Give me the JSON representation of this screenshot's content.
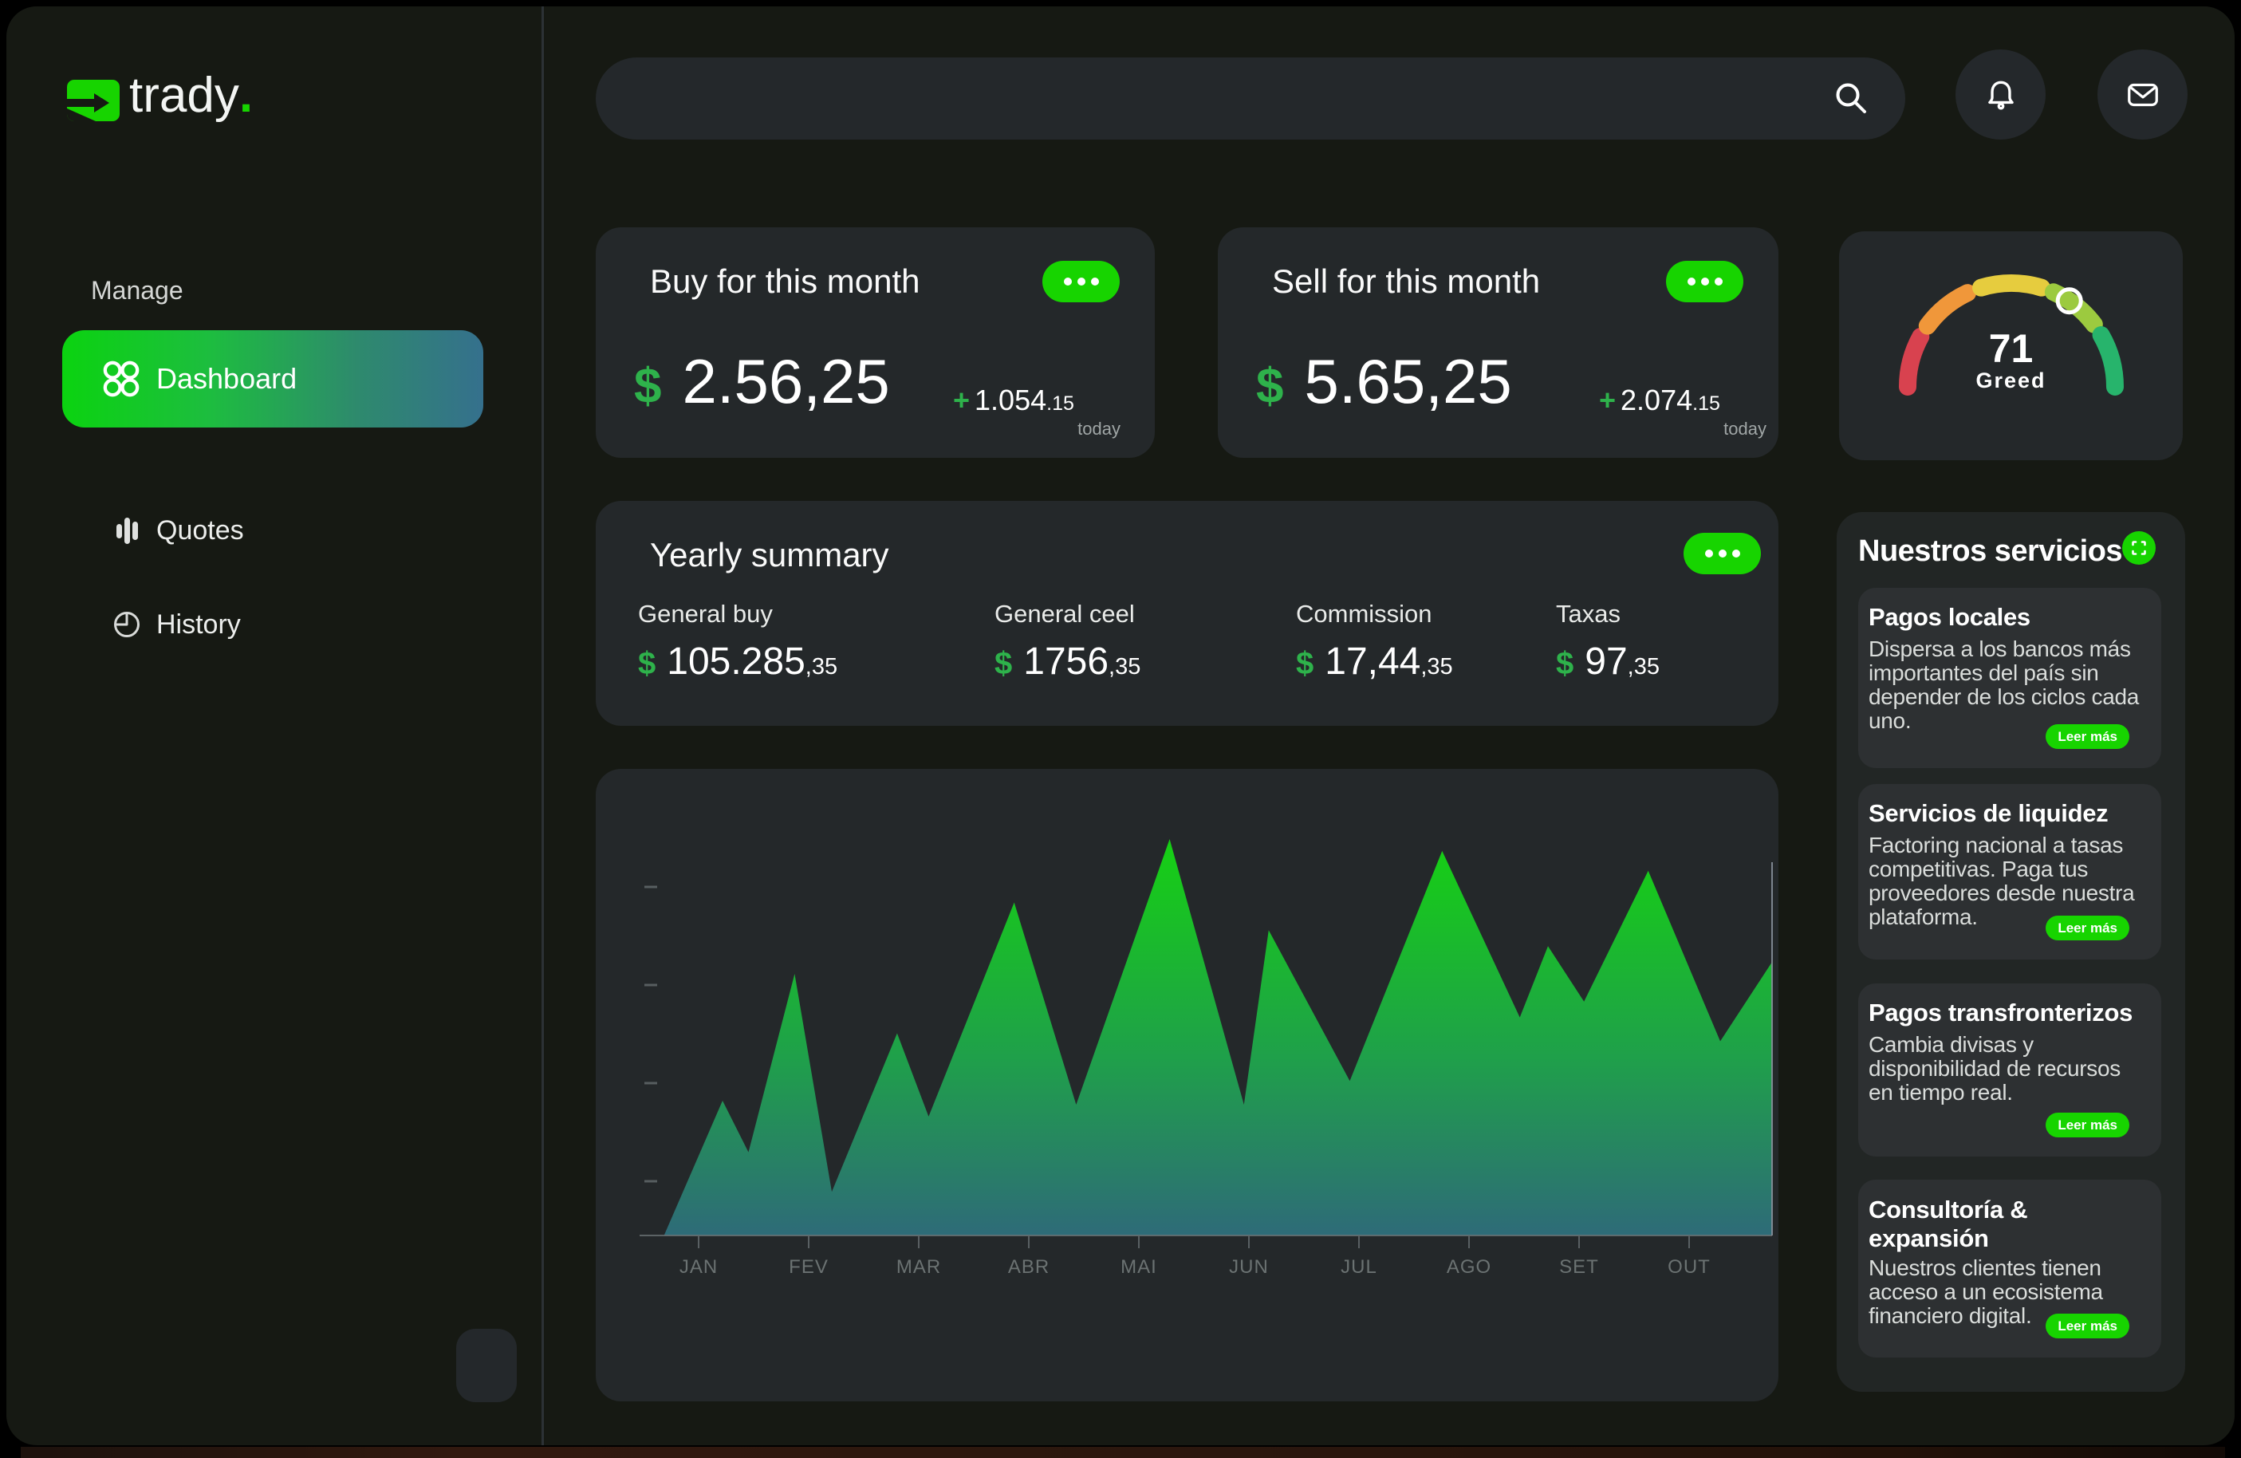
{
  "app": {
    "brand": "trady",
    "brand_dot": "."
  },
  "topbar": {
    "search_value": "",
    "search_icon": "magnifier",
    "bell_icon": "bell",
    "mail_icon": "envelope"
  },
  "sidebar": {
    "section": "Manage",
    "items": [
      {
        "label": "Dashboard",
        "icon": "grid-circles",
        "active": true
      },
      {
        "label": "Quotes",
        "icon": "bar-chart",
        "active": false
      },
      {
        "label": "History",
        "icon": "pie-clock",
        "active": false
      }
    ]
  },
  "buy_card": {
    "title": "Buy for this month",
    "currency": "$",
    "amount": "2.56,25",
    "delta_plus": "+",
    "delta_main": "1.054",
    "delta_small": ".15",
    "delta_caption": "today"
  },
  "sell_card": {
    "title": "Sell for this month",
    "currency": "$",
    "amount": "5.65,25",
    "delta_plus": "+",
    "delta_main": "2.074",
    "delta_small": ".15",
    "delta_caption": "today"
  },
  "gauge": {
    "value": "71",
    "label": "Greed",
    "segments": [
      {
        "from": 180,
        "to": 151,
        "color": "#d8424f"
      },
      {
        "from": 144,
        "to": 115,
        "color": "#f0973a"
      },
      {
        "from": 107,
        "to": 73,
        "color": "#e6cc3e"
      },
      {
        "from": 66,
        "to": 37,
        "color": "#9cca3f"
      },
      {
        "from": 30,
        "to": 0,
        "color": "#27b46c"
      }
    ],
    "indicator_angle": 56
  },
  "yearly": {
    "title": "Yearly summary",
    "stats": [
      {
        "label": "General buy",
        "currency": "$",
        "value": "105.285",
        "cents": ",35"
      },
      {
        "label": "General ceel",
        "currency": "$",
        "value": "1756",
        "cents": ",35"
      },
      {
        "label": "Commission",
        "currency": "$",
        "value": "17,44",
        "cents": ",35"
      },
      {
        "label": "Taxas",
        "currency": "$",
        "value": "97",
        "cents": ",35"
      }
    ]
  },
  "chart_data": {
    "type": "area",
    "title": "",
    "x_labels": [
      "JAN",
      "FEV",
      "MAR",
      "ABR",
      "MAI",
      "JUN",
      "JUL",
      "AGO",
      "SET",
      "OUT"
    ],
    "ylim": [
      0,
      100
    ],
    "grid": false,
    "y_tick_count": 4,
    "gradient": [
      "#16d013",
      "#1fa04a",
      "#2e6b78"
    ],
    "cursor_at_right_edge": true,
    "points": [
      [
        0.016,
        0
      ],
      [
        0.068,
        34
      ],
      [
        0.091,
        21
      ],
      [
        0.132,
        66
      ],
      [
        0.165,
        11
      ],
      [
        0.223,
        51
      ],
      [
        0.251,
        30
      ],
      [
        0.327,
        84
      ],
      [
        0.382,
        33
      ],
      [
        0.465,
        100
      ],
      [
        0.531,
        33
      ],
      [
        0.553,
        77
      ],
      [
        0.625,
        39
      ],
      [
        0.707,
        97
      ],
      [
        0.776,
        55
      ],
      [
        0.801,
        73
      ],
      [
        0.833,
        59
      ],
      [
        0.89,
        92
      ],
      [
        0.954,
        49
      ],
      [
        1.0,
        69
      ]
    ]
  },
  "services": {
    "title": "Nuestros servicios",
    "icon": "scan-frame",
    "items": [
      {
        "title": "Pagos locales",
        "body": "Dispersa a los bancos más importantes del país sin depender de los ciclos cada uno.",
        "cta": "Leer más"
      },
      {
        "title": "Servicios de liquidez",
        "body": "Factoring nacional a tasas competitivas. Paga tus proveedores desde nuestra plataforma.",
        "cta": "Leer más"
      },
      {
        "title": "Pagos transfronterizos",
        "body": "Cambia divisas y disponibilidad de recursos en tiempo real.",
        "cta": "Leer más"
      },
      {
        "title": "Consultoría & expansión",
        "body": "Nuestros clientes tienen acceso a un ecosistema financiero digital.",
        "cta": "Leer más"
      }
    ]
  }
}
